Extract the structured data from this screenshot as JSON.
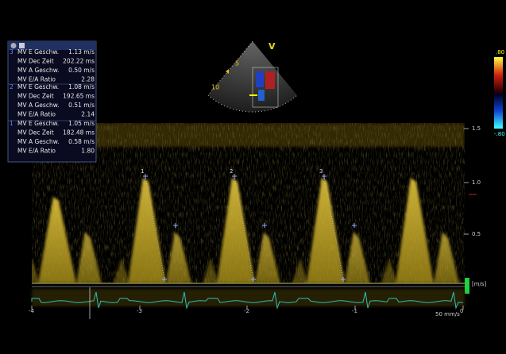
{
  "measurements": {
    "groups": [
      {
        "number": "3",
        "rows": [
          {
            "label": "MV E Geschw.",
            "value": "1.13 m/s"
          },
          {
            "label": "MV Dec Zeit",
            "value": "202.22 ms"
          },
          {
            "label": "MV A Geschw.",
            "value": "0.50 m/s"
          },
          {
            "label": "MV E/A Ratio",
            "value": "2.28"
          }
        ]
      },
      {
        "number": "2",
        "rows": [
          {
            "label": "MV E Geschw.",
            "value": "1.08 m/s"
          },
          {
            "label": "MV Dec Zeit",
            "value": "192.65 ms"
          },
          {
            "label": "MV A Geschw.",
            "value": "0.51 m/s"
          },
          {
            "label": "MV E/A Ratio",
            "value": "2.14"
          }
        ]
      },
      {
        "number": "1",
        "rows": [
          {
            "label": "MV E Geschw.",
            "value": "1.05 m/s"
          },
          {
            "label": "MV Dec Zeit",
            "value": "182.48 ms"
          },
          {
            "label": "MV A Geschw.",
            "value": "0.58 m/s"
          },
          {
            "label": "MV E/A Ratio",
            "value": "1.80"
          }
        ]
      }
    ]
  },
  "sector": {
    "depth_labels": [
      "5",
      "10"
    ],
    "view": "V"
  },
  "color_bar": {
    "top": ".80",
    "bottom": "-.80"
  },
  "velocity_scale": {
    "labels": [
      "1.5",
      "1.0",
      "0.5"
    ],
    "unit": "[m/s]"
  },
  "time_scale": {
    "labels": [
      "-4",
      "-3",
      "-2",
      "-1",
      "0"
    ],
    "sweep": "50 mm/s"
  },
  "cycle_markers": [
    "1",
    "2",
    "3"
  ]
}
